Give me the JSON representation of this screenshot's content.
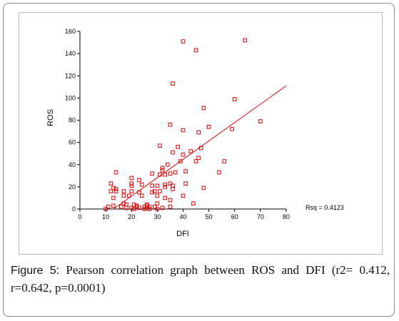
{
  "caption": {
    "label": "Figure 5:",
    "text": " Pearson correlation graph between ROS and DFI (r2= 0.412, r=0.642, p=0.0001)"
  },
  "chart_data": {
    "type": "scatter",
    "xlabel": "DFI",
    "ylabel": "ROS",
    "xlim": [
      0,
      80
    ],
    "ylim": [
      0,
      160
    ],
    "xticks": [
      0,
      10,
      20,
      30,
      40,
      50,
      60,
      70,
      80
    ],
    "yticks": [
      0,
      20,
      40,
      60,
      80,
      100,
      120,
      140,
      160
    ],
    "grid": false,
    "marker_color": "#e00000",
    "fit_line": {
      "x": [
        13,
        80
      ],
      "y": [
        0,
        111
      ]
    },
    "rsq_label": "Rsq = 0.4123",
    "points": [
      [
        10,
        0
      ],
      [
        11,
        2
      ],
      [
        12,
        23
      ],
      [
        12,
        16
      ],
      [
        13,
        10
      ],
      [
        13,
        3
      ],
      [
        13,
        19
      ],
      [
        14,
        33
      ],
      [
        14,
        16
      ],
      [
        14,
        18
      ],
      [
        16,
        2
      ],
      [
        17,
        5
      ],
      [
        17,
        16
      ],
      [
        17,
        12
      ],
      [
        18,
        1
      ],
      [
        18,
        4
      ],
      [
        19,
        12
      ],
      [
        20,
        28
      ],
      [
        20,
        23
      ],
      [
        20,
        21
      ],
      [
        20,
        16
      ],
      [
        20,
        1
      ],
      [
        21,
        4
      ],
      [
        21,
        0
      ],
      [
        22,
        2
      ],
      [
        22,
        3
      ],
      [
        23,
        1
      ],
      [
        23,
        15
      ],
      [
        23,
        26
      ],
      [
        24,
        22
      ],
      [
        24,
        12
      ],
      [
        25,
        2
      ],
      [
        25,
        0
      ],
      [
        26,
        4
      ],
      [
        26,
        3
      ],
      [
        26,
        1
      ],
      [
        27,
        0
      ],
      [
        27,
        2
      ],
      [
        28,
        15
      ],
      [
        28,
        21
      ],
      [
        28,
        32
      ],
      [
        29,
        16
      ],
      [
        29,
        2
      ],
      [
        30,
        0
      ],
      [
        30,
        12
      ],
      [
        30,
        21
      ],
      [
        30,
        5
      ],
      [
        31,
        16
      ],
      [
        31,
        31
      ],
      [
        31,
        57
      ],
      [
        32,
        35
      ],
      [
        32,
        37
      ],
      [
        32,
        1
      ],
      [
        33,
        31
      ],
      [
        33,
        10
      ],
      [
        33,
        22
      ],
      [
        33,
        20
      ],
      [
        34,
        40
      ],
      [
        35,
        32
      ],
      [
        35,
        23
      ],
      [
        35,
        8
      ],
      [
        35,
        2
      ],
      [
        35,
        76
      ],
      [
        36,
        51
      ],
      [
        36,
        21
      ],
      [
        36,
        18
      ],
      [
        36,
        113
      ],
      [
        37,
        33
      ],
      [
        38,
        56
      ],
      [
        39,
        43
      ],
      [
        40,
        12
      ],
      [
        40,
        151
      ],
      [
        40,
        71
      ],
      [
        40,
        49
      ],
      [
        41,
        34
      ],
      [
        41,
        23
      ],
      [
        43,
        52
      ],
      [
        44,
        5
      ],
      [
        45,
        143
      ],
      [
        45,
        43
      ],
      [
        46,
        46
      ],
      [
        46,
        69
      ],
      [
        47,
        55
      ],
      [
        48,
        91
      ],
      [
        48,
        19
      ],
      [
        50,
        74
      ],
      [
        54,
        33
      ],
      [
        56,
        43
      ],
      [
        59,
        72
      ],
      [
        60,
        99
      ],
      [
        64,
        152
      ],
      [
        70,
        79
      ]
    ]
  }
}
